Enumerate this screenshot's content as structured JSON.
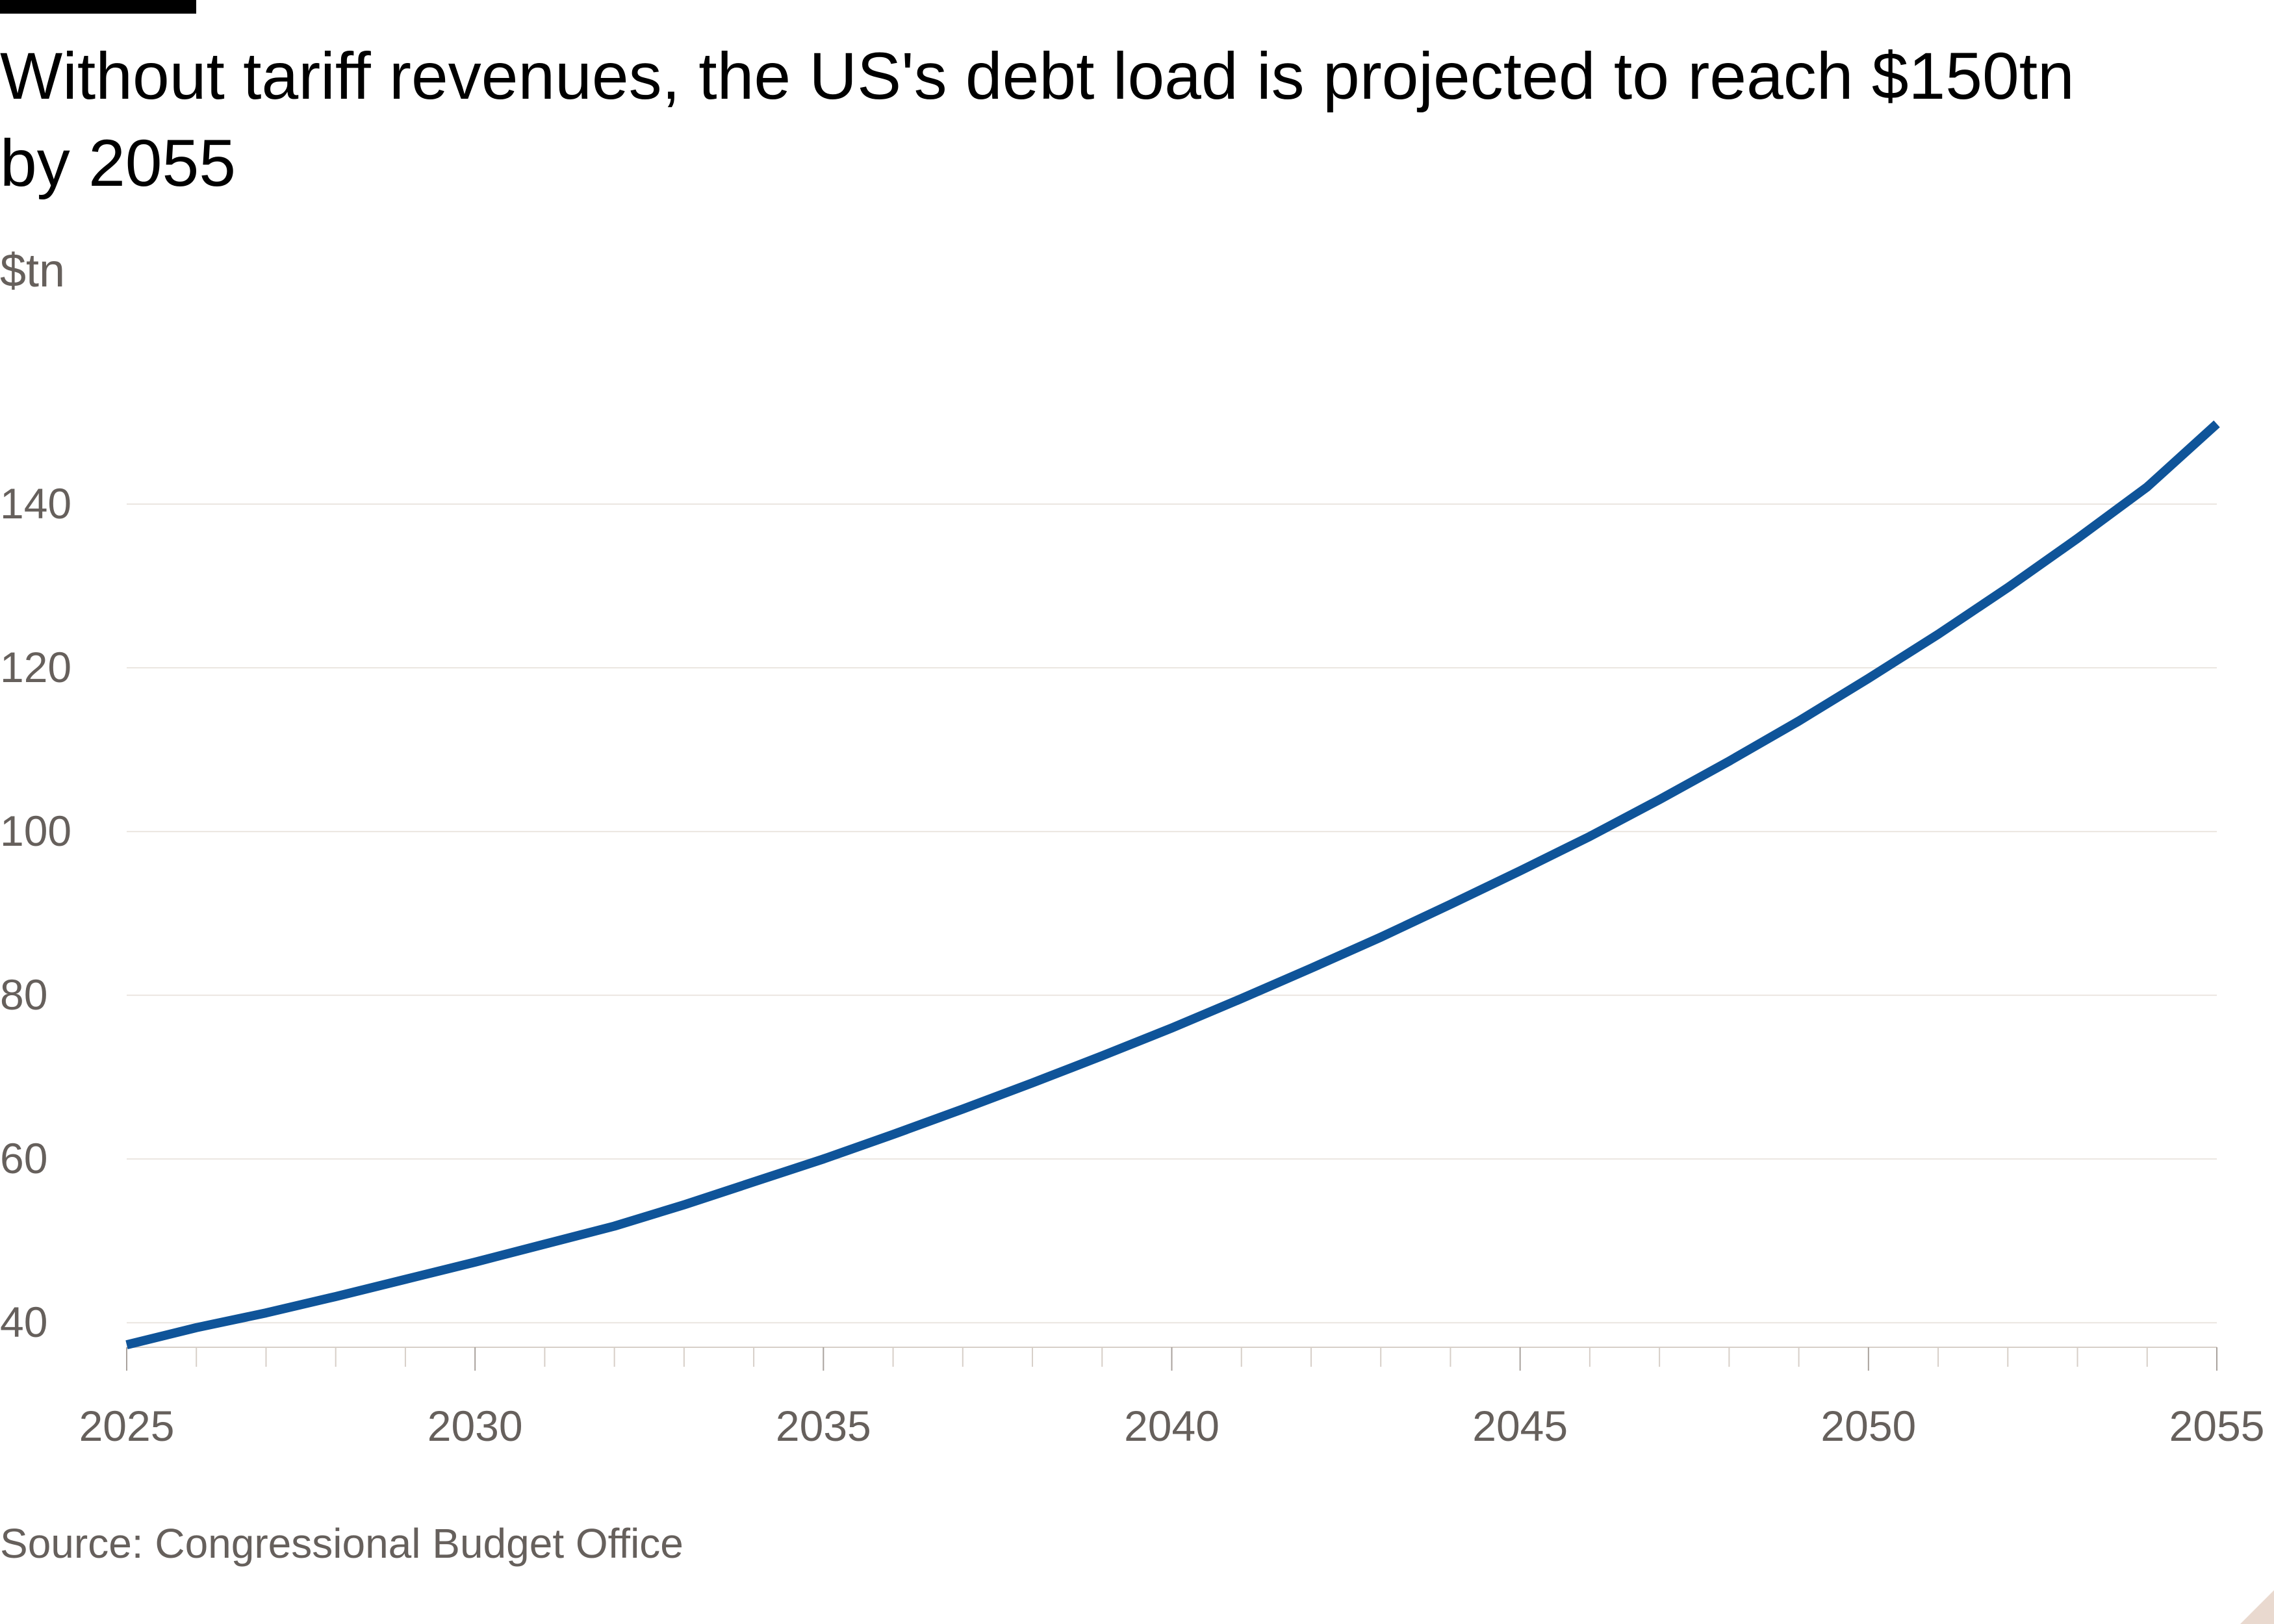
{
  "header": {
    "title": "Without tariff revenues, the US's debt load is projected to reach $150tn by 2055",
    "unit": "$tn"
  },
  "footer": {
    "source": "Source: Congressional Budget Office"
  },
  "colors": {
    "line": "#0f5499",
    "text": "#000000",
    "muted": "#66605c",
    "grid": "#ebe6e1"
  },
  "chart_data": {
    "type": "line",
    "title": "Without tariff revenues, the US's debt load is projected to reach $150tn by 2055",
    "ylabel": "$tn",
    "xlabel": "",
    "xlim": [
      2025,
      2055
    ],
    "ylim": [
      37,
      150
    ],
    "grid": true,
    "x_ticks": [
      2025,
      2030,
      2035,
      2040,
      2045,
      2050,
      2055
    ],
    "y_ticks": [
      40,
      60,
      80,
      100,
      120,
      140
    ],
    "series": [
      {
        "x": [
          2025,
          2026,
          2027,
          2028,
          2029,
          2030,
          2031,
          2032,
          2033,
          2034,
          2035,
          2036,
          2037,
          2038,
          2039,
          2040,
          2041,
          2042,
          2043,
          2044,
          2045,
          2046,
          2047,
          2048,
          2049,
          2050,
          2051,
          2052,
          2053,
          2054,
          2055
        ],
        "values": [
          37.3,
          39.4,
          41.2,
          43.2,
          45.3,
          47.4,
          49.6,
          51.8,
          54.4,
          57.2,
          60.0,
          63.0,
          66.1,
          69.3,
          72.6,
          76.0,
          79.6,
          83.3,
          87.1,
          91.1,
          95.2,
          99.4,
          103.9,
          108.6,
          113.5,
          118.7,
          124.1,
          129.8,
          135.8,
          142.1,
          149.8
        ]
      }
    ]
  }
}
